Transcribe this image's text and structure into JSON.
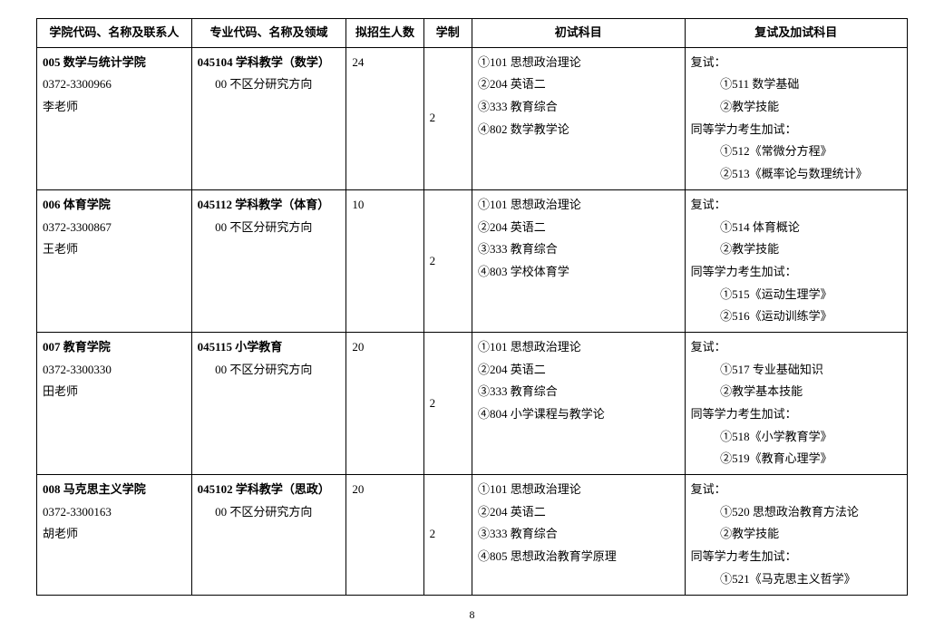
{
  "headers": {
    "c1": "学院代码、名称及联系人",
    "c2": "专业代码、名称及领域",
    "c3": "拟招生人数",
    "c4": "学制",
    "c5": "初试科目",
    "c6": "复试及加试科目"
  },
  "rows": [
    {
      "college_bold": "005 数学与统计学院",
      "college_phone": "0372-3300966",
      "college_teacher": "李老师",
      "major_bold": "045104 学科教学（数学）",
      "major_sub": "00 不区分研究方向",
      "plan": "24",
      "duration": "2",
      "exam1": "①101 思想政治理论",
      "exam2": "②204 英语二",
      "exam3": "③333 教育综合",
      "exam4": "④802 数学教学论",
      "re_t": "复试：",
      "re_1": "①511 数学基础",
      "re_2": "②教学技能",
      "eq_t": "同等学力考生加试：",
      "eq_1": "①512《常微分方程》",
      "eq_2": "②513《概率论与数理统计》"
    },
    {
      "college_bold": "006 体育学院",
      "college_phone": "0372-3300867",
      "college_teacher": "王老师",
      "major_bold": "045112 学科教学（体育）",
      "major_sub": "00 不区分研究方向",
      "plan": "10",
      "duration": "2",
      "exam1": "①101 思想政治理论",
      "exam2": "②204 英语二",
      "exam3": "③333 教育综合",
      "exam4": "④803 学校体育学",
      "re_t": "复试：",
      "re_1": "①514 体育概论",
      "re_2": "②教学技能",
      "eq_t": "同等学力考生加试：",
      "eq_1": "①515《运动生理学》",
      "eq_2": "②516《运动训练学》"
    },
    {
      "college_bold": "007 教育学院",
      "college_phone": "0372-3300330",
      "college_teacher": "田老师",
      "major_bold": "045115 小学教育",
      "major_sub": "00 不区分研究方向",
      "plan": "20",
      "duration": "2",
      "exam1": "①101 思想政治理论",
      "exam2": "②204 英语二",
      "exam3": "③333 教育综合",
      "exam4": "④804 小学课程与教学论",
      "re_t": "复试：",
      "re_1": "①517 专业基础知识",
      "re_2": "②教学基本技能",
      "eq_t": "同等学力考生加试：",
      "eq_1": "①518《小学教育学》",
      "eq_2": "②519《教育心理学》"
    },
    {
      "college_bold": "008 马克思主义学院",
      "college_phone": "0372-3300163",
      "college_teacher": "胡老师",
      "major_bold": "045102 学科教学（思政）",
      "major_sub": "00 不区分研究方向",
      "plan": "20",
      "duration": "2",
      "exam1": "①101 思想政治理论",
      "exam2": "②204 英语二",
      "exam3": "③333 教育综合",
      "exam4": "④805 思想政治教育学原理",
      "re_t": "复试：",
      "re_1": "①520 思想政治教育方法论",
      "re_2": "②教学技能",
      "eq_t": "同等学力考生加试：",
      "eq_1": "①521《马克思主义哲学》",
      "eq_2": ""
    }
  ],
  "page_number": "8"
}
